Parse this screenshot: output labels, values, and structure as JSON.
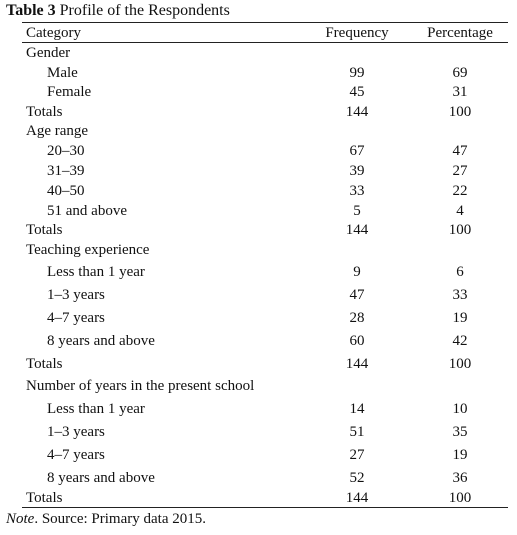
{
  "title": {
    "label": "Table 3",
    "text": "Profile of the Respondents"
  },
  "table": {
    "header": [
      "Category",
      "Frequency",
      "Percentage"
    ],
    "rows": [
      [
        "Gender"
      ],
      [
        "Male",
        "99",
        "69"
      ],
      [
        "Female",
        "45",
        "31"
      ],
      [
        "Totals",
        "144",
        "100"
      ],
      [
        "Age range"
      ],
      [
        "20–30",
        "67",
        "47"
      ],
      [
        "31–39",
        "39",
        "27"
      ],
      [
        "40–50",
        "33",
        "22"
      ],
      [
        "51 and above",
        "5",
        "4"
      ],
      [
        "Totals",
        "144",
        "100"
      ],
      [
        "Teaching experience"
      ],
      [
        "Less than 1 year",
        "9",
        "6"
      ],
      [
        "1–3 years",
        "47",
        "33"
      ],
      [
        "4–7 years",
        "28",
        "19"
      ],
      [
        "8 years and above",
        "60",
        "42"
      ],
      [
        "Totals",
        "144",
        "100"
      ],
      [
        "Number of years in the present school"
      ],
      [
        "Less than 1 year",
        "14",
        "10"
      ],
      [
        "1–3 years",
        "51",
        "35"
      ],
      [
        "4–7 years",
        "27",
        "19"
      ],
      [
        "8 years and above",
        "52",
        "36"
      ],
      [
        "Totals",
        "144",
        "100"
      ]
    ]
  },
  "note": {
    "label": "Note",
    "text": ". Source: Primary data 2015."
  }
}
